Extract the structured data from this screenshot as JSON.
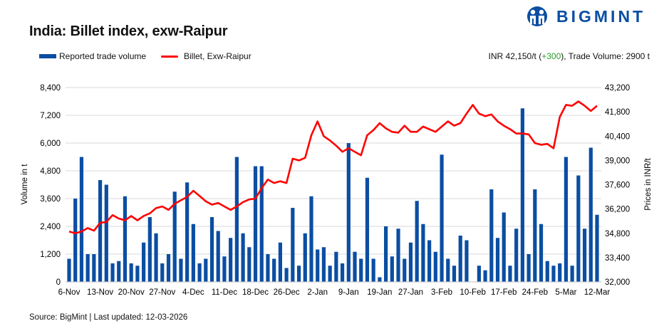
{
  "header": {
    "title": "India: Billet index, exw-Raipur"
  },
  "logo": {
    "text": "BIGMINT"
  },
  "summary": {
    "price_text": "INR 42,150/t (",
    "change": "+300",
    "rest": "), Trade Volume: 2900 t"
  },
  "footer": {
    "source": "Source: BigMint | Last updated: 12-03-2026"
  },
  "colors": {
    "volume": "#0B4EA2",
    "price": "#FF0000",
    "change_positive": "#2CA02C",
    "grid": "#D9D9D9"
  },
  "chart_data": {
    "type": "bar+line",
    "title": "India: Billet index, exw-Raipur",
    "ylabel": "Volume in t",
    "y2label": "Prices in INR/t",
    "ylim": [
      0,
      8400
    ],
    "y2lim": [
      32000,
      43200
    ],
    "y_ticks": [
      "0",
      "1,200",
      "2,400",
      "3,600",
      "4,800",
      "6,000",
      "7,200",
      "8,400"
    ],
    "y2_ticks": [
      "32,000",
      "33,400",
      "34,800",
      "36,200",
      "37,600",
      "39,000",
      "40,400",
      "41,800",
      "43,200"
    ],
    "grid": true,
    "legend_position": "top-left",
    "x_ticks": [
      {
        "index": 0,
        "label": "6-Nov"
      },
      {
        "index": 5,
        "label": "13-Nov"
      },
      {
        "index": 10,
        "label": "20-Nov"
      },
      {
        "index": 15,
        "label": "27-Nov"
      },
      {
        "index": 20,
        "label": "4-Dec"
      },
      {
        "index": 25,
        "label": "11-Dec"
      },
      {
        "index": 30,
        "label": "18-Dec"
      },
      {
        "index": 35,
        "label": "26-Dec"
      },
      {
        "index": 40,
        "label": "2-Jan"
      },
      {
        "index": 45,
        "label": "9-Jan"
      },
      {
        "index": 50,
        "label": "19-Jan"
      },
      {
        "index": 55,
        "label": "27-Jan"
      },
      {
        "index": 60,
        "label": "3-Feb"
      },
      {
        "index": 65,
        "label": "10-Feb"
      },
      {
        "index": 70,
        "label": "17-Feb"
      },
      {
        "index": 75,
        "label": "24-Feb"
      },
      {
        "index": 80,
        "label": "5-Mar"
      },
      {
        "index": 85,
        "label": "12-Mar"
      }
    ],
    "series": [
      {
        "name": "Reported trade volume",
        "type": "bar",
        "axis": "left",
        "values": [
          1000,
          3600,
          5400,
          1200,
          1200,
          4400,
          4200,
          800,
          900,
          3700,
          800,
          700,
          1700,
          2800,
          2100,
          800,
          1200,
          3900,
          1000,
          4300,
          2500,
          800,
          1000,
          2800,
          2200,
          1100,
          1900,
          5400,
          2100,
          1500,
          5000,
          5000,
          1200,
          1000,
          1700,
          600,
          3200,
          700,
          2100,
          3700,
          1400,
          1500,
          700,
          1300,
          800,
          6000,
          1300,
          1000,
          4500,
          1000,
          200,
          2400,
          1100,
          2300,
          1000,
          1700,
          3500,
          2500,
          1800,
          1300,
          5500,
          1000,
          700,
          2000,
          1800,
          0,
          700,
          500,
          4000,
          1900,
          3000,
          700,
          2300,
          7500,
          1200,
          4000,
          2500,
          900,
          700,
          800,
          5400,
          700,
          4600,
          2300,
          5800,
          2900
        ]
      },
      {
        "name": "Billet, Exw-Raipur",
        "type": "line",
        "axis": "right",
        "values": [
          34900,
          34800,
          34900,
          35100,
          34950,
          35400,
          35450,
          35850,
          35650,
          35550,
          35800,
          35550,
          35800,
          35950,
          36250,
          36350,
          36150,
          36500,
          36700,
          36900,
          37250,
          36950,
          36650,
          36450,
          36550,
          36350,
          36150,
          36350,
          36600,
          36750,
          36800,
          37400,
          37900,
          37700,
          37800,
          37700,
          39100,
          39000,
          39150,
          40450,
          41250,
          40400,
          40150,
          39850,
          39500,
          39700,
          39500,
          39300,
          40450,
          40750,
          41150,
          40850,
          40650,
          40600,
          41000,
          40650,
          40650,
          40950,
          40800,
          40650,
          40950,
          41250,
          41000,
          41150,
          41700,
          42200,
          41700,
          41550,
          41650,
          41250,
          41000,
          40800,
          40550,
          40550,
          40500,
          40000,
          39900,
          39950,
          39700,
          41500,
          42200,
          42150,
          42400,
          42150,
          41850,
          42150
        ]
      }
    ]
  }
}
